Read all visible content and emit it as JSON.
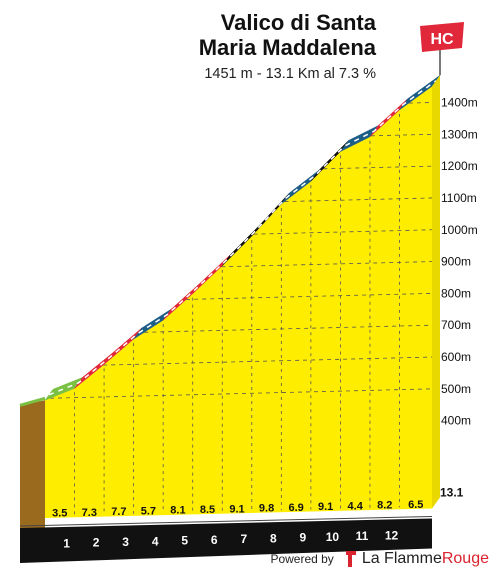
{
  "header": {
    "title_line1": "Valico di Santa",
    "title_line2": "Maria Maddalena",
    "subtitle": "1451 m - 13.1 Km al 7.3 %",
    "category_badge": "HC"
  },
  "chart_data": {
    "type": "area",
    "title": "Valico di Santa Maria Maddalena",
    "subtitle": "1451 m - 13.1 Km al 7.3 %",
    "x_unit": "km",
    "y_unit": "m",
    "ylim": [
      300,
      1450
    ],
    "y_ticks": [
      "400m",
      "500m",
      "600m",
      "700m",
      "800m",
      "900m",
      "1000m",
      "1100m",
      "1200m",
      "1300m",
      "1400m"
    ],
    "y_tick_values": [
      400,
      500,
      600,
      700,
      800,
      900,
      1000,
      1100,
      1200,
      1300,
      1400
    ],
    "km_markers": [
      "1",
      "2",
      "3",
      "4",
      "5",
      "6",
      "7",
      "8",
      "9",
      "10",
      "11",
      "12"
    ],
    "total_distance_label": "13.1",
    "total_distance": 13.1,
    "segments": [
      {
        "km": 1,
        "gradient_label": "3.5",
        "gradient": 3.5
      },
      {
        "km": 2,
        "gradient_label": "7.3",
        "gradient": 7.3
      },
      {
        "km": 3,
        "gradient_label": "7.7",
        "gradient": 7.7
      },
      {
        "km": 4,
        "gradient_label": "5.7",
        "gradient": 5.7
      },
      {
        "km": 5,
        "gradient_label": "8.1",
        "gradient": 8.1
      },
      {
        "km": 6,
        "gradient_label": "8.5",
        "gradient": 8.5
      },
      {
        "km": 7,
        "gradient_label": "9.1",
        "gradient": 9.1
      },
      {
        "km": 8,
        "gradient_label": "9.8",
        "gradient": 9.8
      },
      {
        "km": 9,
        "gradient_label": "6.9",
        "gradient": 6.9
      },
      {
        "km": 10,
        "gradient_label": "9.1",
        "gradient": 9.1
      },
      {
        "km": 11,
        "gradient_label": "4.4",
        "gradient": 4.4
      },
      {
        "km": 12,
        "gradient_label": "8.2",
        "gradient": 8.2
      },
      {
        "km": 13.1,
        "gradient_label": "6.5",
        "gradient": 6.5
      }
    ],
    "gradient_colors": {
      "easy": "#7ac143",
      "moderate": "#1d5e87",
      "hard": "#e0283a",
      "very_hard": "#111111"
    },
    "fill_color": "#ffed00",
    "grid": true
  },
  "footer": {
    "powered_by": "Powered by",
    "brand_part1": "La Flamme",
    "brand_part2": "Rouge"
  }
}
